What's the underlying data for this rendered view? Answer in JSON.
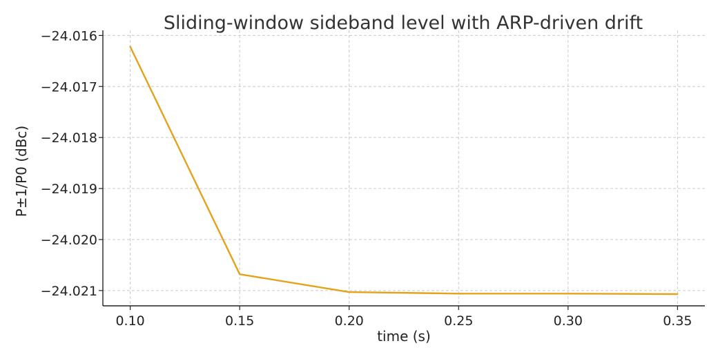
{
  "chart_data": {
    "type": "line",
    "title": "Sliding-window sideband level with ARP-driven drift",
    "xlabel": "time (s)",
    "ylabel": "P±1/P0 (dBc)",
    "xlim": [
      0.0875,
      0.3625
    ],
    "ylim": [
      -24.0213,
      -24.0159
    ],
    "xticks": [
      0.1,
      0.15,
      0.2,
      0.25,
      0.3,
      0.35
    ],
    "xtick_labels": [
      "0.10",
      "0.15",
      "0.20",
      "0.25",
      "0.30",
      "0.35"
    ],
    "yticks": [
      -24.016,
      -24.017,
      -24.018,
      -24.019,
      -24.02,
      -24.021
    ],
    "ytick_labels": [
      "−24.016",
      "−24.017",
      "−24.018",
      "−24.019",
      "−24.020",
      "−24.021"
    ],
    "grid": true,
    "series": [
      {
        "color": "#e3a21a",
        "x": [
          0.1,
          0.15,
          0.2,
          0.25,
          0.3,
          0.35
        ],
        "y": [
          -24.01622,
          -24.02068,
          -24.02103,
          -24.02106,
          -24.02106,
          -24.02107
        ]
      }
    ]
  }
}
